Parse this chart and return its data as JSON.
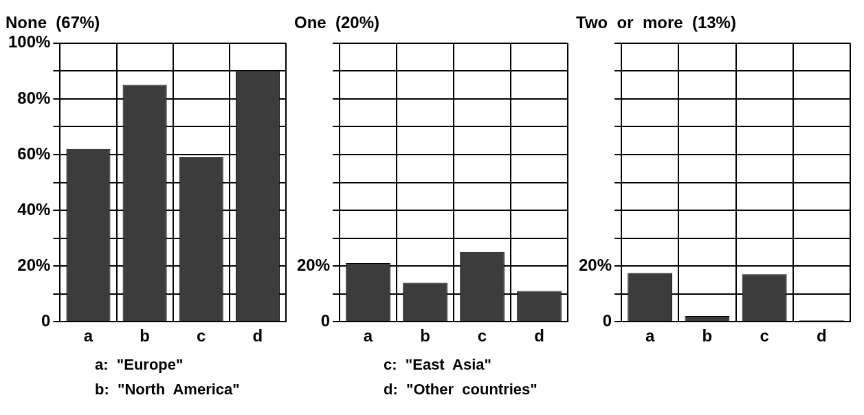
{
  "chart_data": [
    {
      "type": "bar",
      "title": "None  (67%)",
      "categories": [
        "a",
        "b",
        "c",
        "d"
      ],
      "values": [
        62,
        85,
        59,
        90
      ],
      "color": "#3c3c3c",
      "ylim": [
        0,
        100
      ],
      "yticks": [
        {
          "value": 0,
          "label": "0"
        },
        {
          "value": 10,
          "label": null
        },
        {
          "value": 20,
          "label": "20%"
        },
        {
          "value": 30,
          "label": null
        },
        {
          "value": 40,
          "label": "40%"
        },
        {
          "value": 50,
          "label": null
        },
        {
          "value": 60,
          "label": "60%"
        },
        {
          "value": 70,
          "label": null
        },
        {
          "value": 80,
          "label": "80%"
        },
        {
          "value": 90,
          "label": null
        },
        {
          "value": 100,
          "label": "100%"
        }
      ],
      "grid": true,
      "annotations": [
        "a:  \"Europe\"",
        "b:  \"North  America\""
      ]
    },
    {
      "type": "bar",
      "title": "One  (20%)",
      "categories": [
        "a",
        "b",
        "c",
        "d"
      ],
      "values": [
        21,
        14,
        25,
        11
      ],
      "color": "#3c3c3c",
      "ylim": [
        0,
        100
      ],
      "yticks": [
        {
          "value": 0,
          "label": "0"
        },
        {
          "value": 10,
          "label": null
        },
        {
          "value": 20,
          "label": "20%"
        },
        {
          "value": 30,
          "label": null
        },
        {
          "value": 40,
          "label": null
        },
        {
          "value": 50,
          "label": null
        },
        {
          "value": 60,
          "label": null
        },
        {
          "value": 70,
          "label": null
        },
        {
          "value": 80,
          "label": null
        },
        {
          "value": 90,
          "label": null
        },
        {
          "value": 100,
          "label": null
        }
      ],
      "grid": true,
      "annotations": [
        "c:  \"East  Asia\"",
        "d:  \"Other  countries\""
      ]
    },
    {
      "type": "bar",
      "title": "Two  or  more  (13%)",
      "categories": [
        "a",
        "b",
        "c",
        "d"
      ],
      "values": [
        17.5,
        2,
        17,
        0.5
      ],
      "color": "#3c3c3c",
      "ylim": [
        0,
        100
      ],
      "yticks": [
        {
          "value": 0,
          "label": "0"
        },
        {
          "value": 10,
          "label": null
        },
        {
          "value": 20,
          "label": "20%"
        },
        {
          "value": 30,
          "label": null
        },
        {
          "value": 40,
          "label": null
        },
        {
          "value": 50,
          "label": null
        },
        {
          "value": 60,
          "label": null
        },
        {
          "value": 70,
          "label": null
        },
        {
          "value": 80,
          "label": null
        },
        {
          "value": 90,
          "label": null
        },
        {
          "value": 100,
          "label": null
        }
      ],
      "grid": true
    }
  ]
}
